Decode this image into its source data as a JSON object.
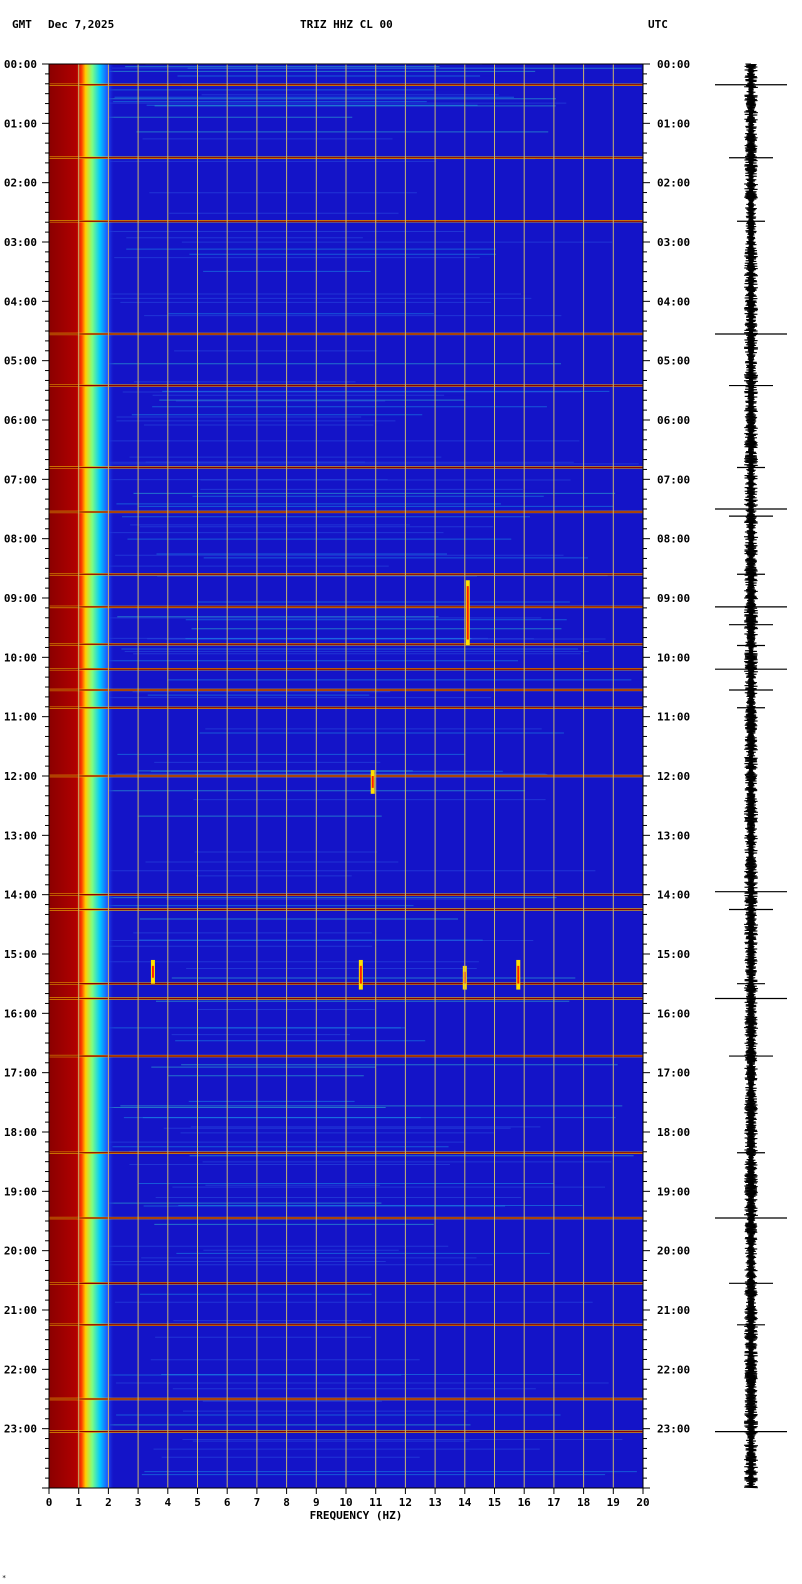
{
  "header": {
    "left_tz": "GMT",
    "date": "Dec 7,2025",
    "station": "TRIZ HHZ CL 00",
    "right_tz": "UTC"
  },
  "footer_mark": "*",
  "colors": {
    "background": "#ffffff",
    "spectrogram_base": "#1414c8",
    "low_freq_band": "#8b0000",
    "grid": "#c8b46e",
    "event_line": "#8b0000",
    "trace": "#000000"
  },
  "chart_data": {
    "type": "heatmap",
    "subtype": "spectrogram",
    "xlabel": "FREQUENCY (HZ)",
    "x_ticks": [
      "0",
      "1",
      "2",
      "3",
      "4",
      "5",
      "6",
      "7",
      "8",
      "9",
      "10",
      "11",
      "12",
      "13",
      "14",
      "15",
      "16",
      "17",
      "18",
      "19",
      "20"
    ],
    "xlim": [
      0,
      20
    ],
    "y_ticks": [
      "00:00",
      "01:00",
      "02:00",
      "03:00",
      "04:00",
      "05:00",
      "06:00",
      "07:00",
      "08:00",
      "09:00",
      "10:00",
      "11:00",
      "12:00",
      "13:00",
      "14:00",
      "15:00",
      "16:00",
      "17:00",
      "18:00",
      "19:00",
      "20:00",
      "21:00",
      "22:00",
      "23:00"
    ],
    "ylim_hours": [
      0,
      24
    ],
    "grid": true,
    "strong_lines_hours": [
      0.35,
      1.58,
      2.65,
      4.55,
      5.42,
      6.8,
      7.55,
      8.6,
      9.15,
      9.78,
      10.2,
      10.55,
      10.85,
      12.0,
      14.0,
      14.25,
      15.5,
      15.75,
      16.72,
      18.35,
      19.45,
      20.55,
      21.25,
      22.5,
      23.05
    ],
    "hot_spots": [
      {
        "freq": 14.1,
        "hour_start": 8.7,
        "hour_end": 9.8
      },
      {
        "freq": 10.9,
        "hour_start": 11.9,
        "hour_end": 12.3
      },
      {
        "freq": 10.5,
        "hour_start": 15.1,
        "hour_end": 15.6
      },
      {
        "freq": 14.0,
        "hour_start": 15.2,
        "hour_end": 15.6
      },
      {
        "freq": 15.8,
        "hour_start": 15.1,
        "hour_end": 15.6
      },
      {
        "freq": 3.5,
        "hour_start": 15.1,
        "hour_end": 15.5
      }
    ],
    "trace_spikes_hours": [
      0.35,
      1.58,
      2.65,
      4.55,
      5.42,
      6.8,
      7.5,
      7.62,
      8.6,
      9.15,
      9.45,
      9.8,
      10.2,
      10.55,
      10.85,
      13.95,
      14.25,
      15.5,
      15.75,
      16.72,
      18.35,
      19.45,
      20.55,
      21.25,
      23.05
    ]
  }
}
